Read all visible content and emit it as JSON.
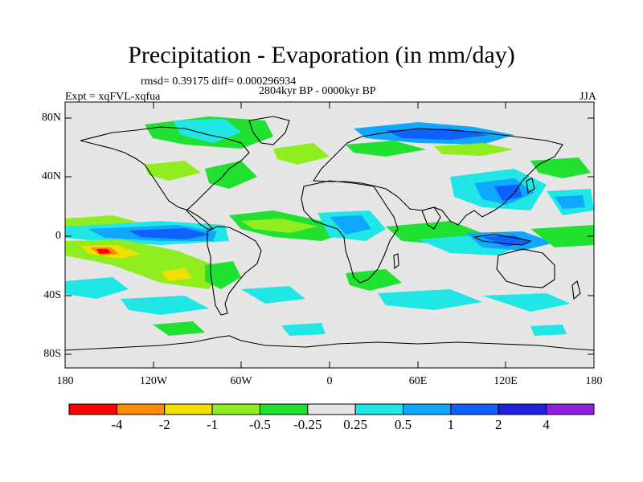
{
  "title": "Precipitation - Evaporation (in mm/day)",
  "stats_line": "rmsd= 0.39175 diff= 0.000296934",
  "period_line": "2804kyr BP - 0000kyr BP",
  "experiment_line": "Expt = xqFVL-xqfua",
  "season": "JJA",
  "lat_ticks": [
    "80N",
    "40N",
    "0",
    "40S",
    "80S"
  ],
  "lon_ticks": [
    "180",
    "120W",
    "60W",
    "0",
    "60E",
    "120E",
    "180"
  ],
  "colorbar": {
    "colors": [
      "#ff0000",
      "#ff8c00",
      "#f0e000",
      "#90ee20",
      "#20e030",
      "#e6e6e6",
      "#20e6e6",
      "#10a8ff",
      "#1060ff",
      "#2020e0",
      "#9020e0"
    ],
    "labels": [
      "-4",
      "-2",
      "-1",
      "-0.5",
      "-0.25",
      "0.25",
      "0.5",
      "1",
      "2",
      "4"
    ]
  },
  "colors": {
    "background": "#e6e6e6",
    "coast": "#000000"
  }
}
